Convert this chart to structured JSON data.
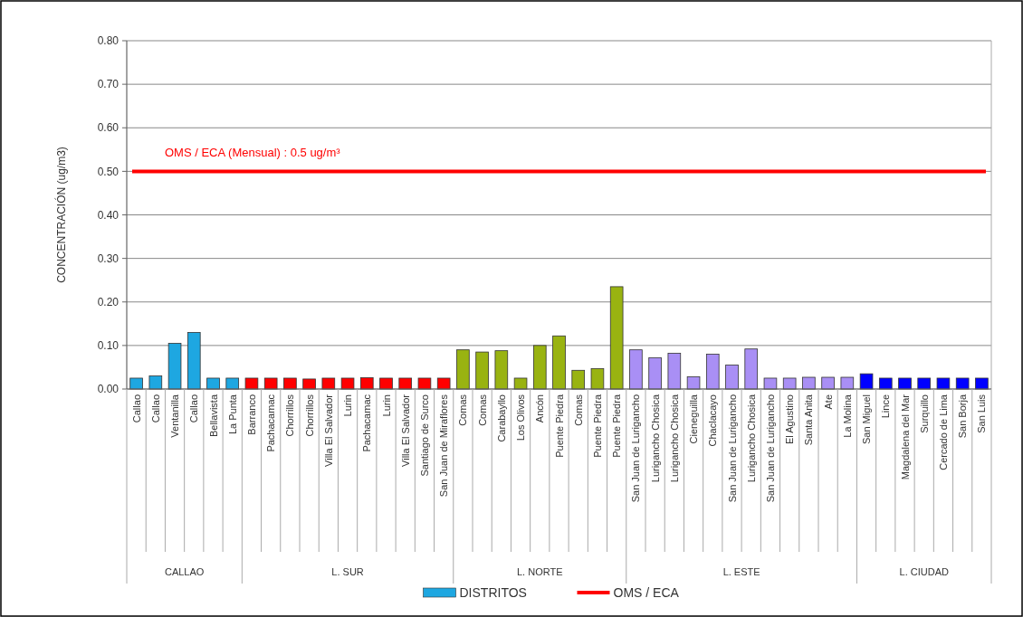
{
  "chart_data": {
    "type": "bar",
    "ylabel": "CONCENTRACIÓN (ug/m3)",
    "categories": [
      "Callao",
      "Callao",
      "Ventanilla",
      "Callao",
      "Bellavista",
      "La Punta",
      "Barranco",
      "Pachacamac",
      "Chorrillos",
      "Chorrillos",
      "Villa El Salvador",
      "Lurin",
      "Pachacamac",
      "Lurin",
      "Villa El Salvador",
      "Santiago de Surco",
      "San Juan de Miraflores",
      "Comas",
      "Comas",
      "Carabayllo",
      "Los Olivos",
      "Ancón",
      "Puente Piedra",
      "Comas",
      "Puente Piedra",
      "Puente Piedra",
      "San Juan de Lurigancho",
      "Lurigancho Chosica",
      "Lurigancho Chosica",
      "Cieneguilla",
      "Chaclacayo",
      "San Juan de Lurigancho",
      "Lurigancho Chosica",
      "San Juan de Lurigancho",
      "El Agustino",
      "Santa Anita",
      "Ate",
      "La Molina",
      "San Miguel",
      "Lince",
      "Magdalena del Mar",
      "Surquillo",
      "Cercado de Lima",
      "San Borja",
      "San Luis"
    ],
    "series": [
      {
        "name": "DISTRITOS",
        "color": "#1ea7e1",
        "values": [
          0.025,
          0.03,
          0.105,
          0.13,
          0.025,
          0.025,
          0.025,
          0.025,
          0.025,
          0.023,
          0.025,
          0.025,
          0.026,
          0.025,
          0.025,
          0.025,
          0.025,
          0.09,
          0.085,
          0.088,
          0.025,
          0.1,
          0.122,
          0.043,
          0.047,
          0.235,
          0.09,
          0.072,
          0.082,
          0.028,
          0.08,
          0.055,
          0.092,
          0.025,
          0.025,
          0.027,
          0.027,
          0.027,
          0.035,
          0.025,
          0.025,
          0.025,
          0.025,
          0.025,
          0.025
        ],
        "colors": [
          "#1ea7e1",
          "#1ea7e1",
          "#1ea7e1",
          "#1ea7e1",
          "#1ea7e1",
          "#1ea7e1",
          "#ff0000",
          "#ff0000",
          "#ff0000",
          "#ff0000",
          "#ff0000",
          "#ff0000",
          "#ff0000",
          "#ff0000",
          "#ff0000",
          "#ff0000",
          "#ff0000",
          "#99b311",
          "#99b311",
          "#99b311",
          "#99b311",
          "#99b311",
          "#99b311",
          "#99b311",
          "#99b311",
          "#99b311",
          "#a98ff5",
          "#a98ff5",
          "#a98ff5",
          "#a98ff5",
          "#a98ff5",
          "#a98ff5",
          "#a98ff5",
          "#a98ff5",
          "#a98ff5",
          "#a98ff5",
          "#a98ff5",
          "#a98ff5",
          "#0000ff",
          "#0000ff",
          "#0000ff",
          "#0000ff",
          "#0000ff",
          "#0000ff",
          "#0000ff"
        ]
      }
    ],
    "ylim": [
      0,
      0.8
    ],
    "yticks": [
      {
        "value": 0,
        "label": "0.00"
      },
      {
        "value": 0.1,
        "label": "0.10"
      },
      {
        "value": 0.2,
        "label": "0.20"
      },
      {
        "value": 0.3,
        "label": "0.30"
      },
      {
        "value": 0.4,
        "label": "0.40"
      },
      {
        "value": 0.5,
        "label": "0.50"
      },
      {
        "value": 0.6,
        "label": "0.60"
      },
      {
        "value": 0.7,
        "label": "0.70"
      },
      {
        "value": 0.8,
        "label": "0.80"
      }
    ],
    "grid": "y",
    "ref_lines": [
      {
        "axis": "y",
        "value": 0.5,
        "label": "OMS / ECA",
        "color": "#ff0000"
      }
    ],
    "annotations": [
      {
        "text": "OMS / ECA (Mensual) : 0.5 ug/m³",
        "y": 0.5
      },
      "CALLAO",
      "L. SUR",
      "L. NORTE",
      "L. ESTE",
      "L. CIUDAD"
    ],
    "legend": "bottom"
  }
}
